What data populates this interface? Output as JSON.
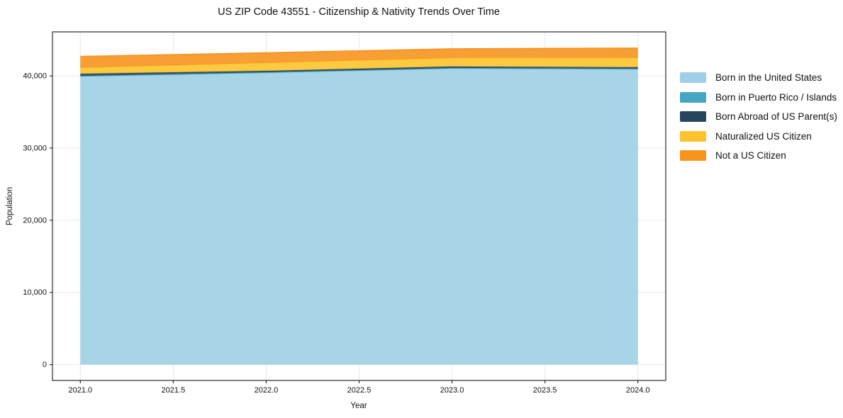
{
  "chart_data": {
    "type": "area",
    "stacked": true,
    "title": "US ZIP Code 43551 - Citizenship & Nativity Trends Over Time",
    "xlabel": "Year",
    "ylabel": "Population",
    "x": [
      2021,
      2022,
      2023,
      2024
    ],
    "series": [
      {
        "name": "Born in the United States",
        "color": "#9ecfe6",
        "values": [
          39900,
          40400,
          41000,
          40900
        ]
      },
      {
        "name": "Born in Puerto Rico / Islands",
        "color": "#45a5c3",
        "values": [
          100,
          100,
          100,
          100
        ]
      },
      {
        "name": "Born Abroad of US Parent(s)",
        "color": "#27475c",
        "values": [
          300,
          200,
          200,
          200
        ]
      },
      {
        "name": "Naturalized US Citizen",
        "color": "#fcc32d",
        "values": [
          850,
          1100,
          1200,
          1300
        ]
      },
      {
        "name": "Not a US Citizen",
        "color": "#f6941e",
        "values": [
          1550,
          1400,
          1250,
          1350
        ]
      }
    ],
    "totals": [
      42700,
      43200,
      43750,
      43850
    ],
    "xticks": [
      2021.0,
      2021.5,
      2022.0,
      2022.5,
      2023.0,
      2023.5,
      2024.0
    ],
    "xtick_labels": [
      "2021.0",
      "2021.5",
      "2022.0",
      "2022.5",
      "2023.0",
      "2023.5",
      "2024.0"
    ],
    "yticks": [
      0,
      10000,
      20000,
      30000,
      40000
    ],
    "ytick_labels": [
      "0",
      "10,000",
      "20,000",
      "30,000",
      "40,000"
    ],
    "xlim": [
      2020.85,
      2024.15
    ],
    "ylim": [
      -2200,
      46100
    ],
    "grid": true,
    "grid_color": "#e7e7e7",
    "spine_color": "#2b2b2b",
    "fill_opacity": 0.9,
    "legend_position": "right"
  }
}
